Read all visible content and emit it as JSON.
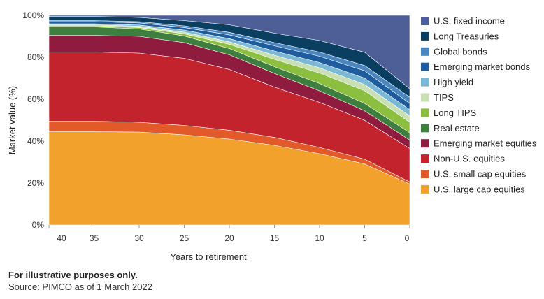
{
  "chart_data": {
    "type": "area",
    "stacked": true,
    "title": "",
    "xlabel": "Years to retirement",
    "ylabel": "Market value (%)",
    "x": [
      40,
      35,
      30,
      25,
      20,
      15,
      10,
      5,
      0
    ],
    "xticks": [
      "40",
      "35",
      "30",
      "25",
      "20",
      "15",
      "10",
      "5",
      "0"
    ],
    "yticks": [
      "0%",
      "20%",
      "40%",
      "60%",
      "80%",
      "100%"
    ],
    "ylim": [
      0,
      100
    ],
    "legend_position": "right",
    "series": [
      {
        "name": "U.S. large cap equities",
        "color": "#F2A22C",
        "values": [
          44.5,
          44.5,
          44.3,
          43,
          41,
          38,
          34,
          29,
          19.5
        ]
      },
      {
        "name": "U.S. small cap equities",
        "color": "#E2592A",
        "values": [
          5,
          5,
          4.7,
          4.5,
          4.2,
          3.8,
          3,
          2.2,
          1
        ]
      },
      {
        "name": "Non-U.S. equities",
        "color": "#C3232D",
        "values": [
          33,
          33,
          33,
          32,
          29,
          24,
          21.5,
          18.5,
          16
        ]
      },
      {
        "name": "Emerging market equities",
        "color": "#8F1B3F",
        "values": [
          8,
          8,
          8,
          7.5,
          7,
          6.5,
          5.5,
          4.5,
          4
        ]
      },
      {
        "name": "Real estate",
        "color": "#3E7E3E",
        "values": [
          4,
          4,
          3.5,
          3.2,
          3,
          3.2,
          3.5,
          3.5,
          3.5
        ]
      },
      {
        "name": "Long TIPS",
        "color": "#8CBF3F",
        "values": [
          0.5,
          0.5,
          0.7,
          1,
          2,
          3.5,
          5,
          6,
          5
        ]
      },
      {
        "name": "TIPS",
        "color": "#C8E0B4",
        "values": [
          0.5,
          0.5,
          0.6,
          0.8,
          1.2,
          2,
          2.5,
          3,
          3
        ]
      },
      {
        "name": "High yield",
        "color": "#7BB8D6",
        "values": [
          0.5,
          0.5,
          0.6,
          1,
          1.5,
          2,
          2.5,
          3,
          3
        ]
      },
      {
        "name": "Emerging market bonds",
        "color": "#1E5C9E",
        "values": [
          1,
          1,
          1,
          1.2,
          1.8,
          2.5,
          3,
          3.5,
          3
        ]
      },
      {
        "name": "Global bonds",
        "color": "#4A86BF",
        "values": [
          0.5,
          0.5,
          0.6,
          0.8,
          1.2,
          1.5,
          2,
          2.5,
          3
        ]
      },
      {
        "name": "Long Treasuries",
        "color": "#0B3F62",
        "values": [
          2,
          2,
          2,
          2.5,
          3.6,
          4.5,
          5.5,
          6.3,
          4
        ]
      },
      {
        "name": "U.S. fixed income",
        "color": "#4E5F98",
        "values": [
          0.5,
          0.5,
          1,
          2.5,
          4.5,
          8.5,
          12,
          17.5,
          35
        ]
      }
    ]
  },
  "notes": {
    "disclaimer": "For illustrative purposes only.",
    "source": "Source: PIMCO as of 1 March 2022"
  }
}
